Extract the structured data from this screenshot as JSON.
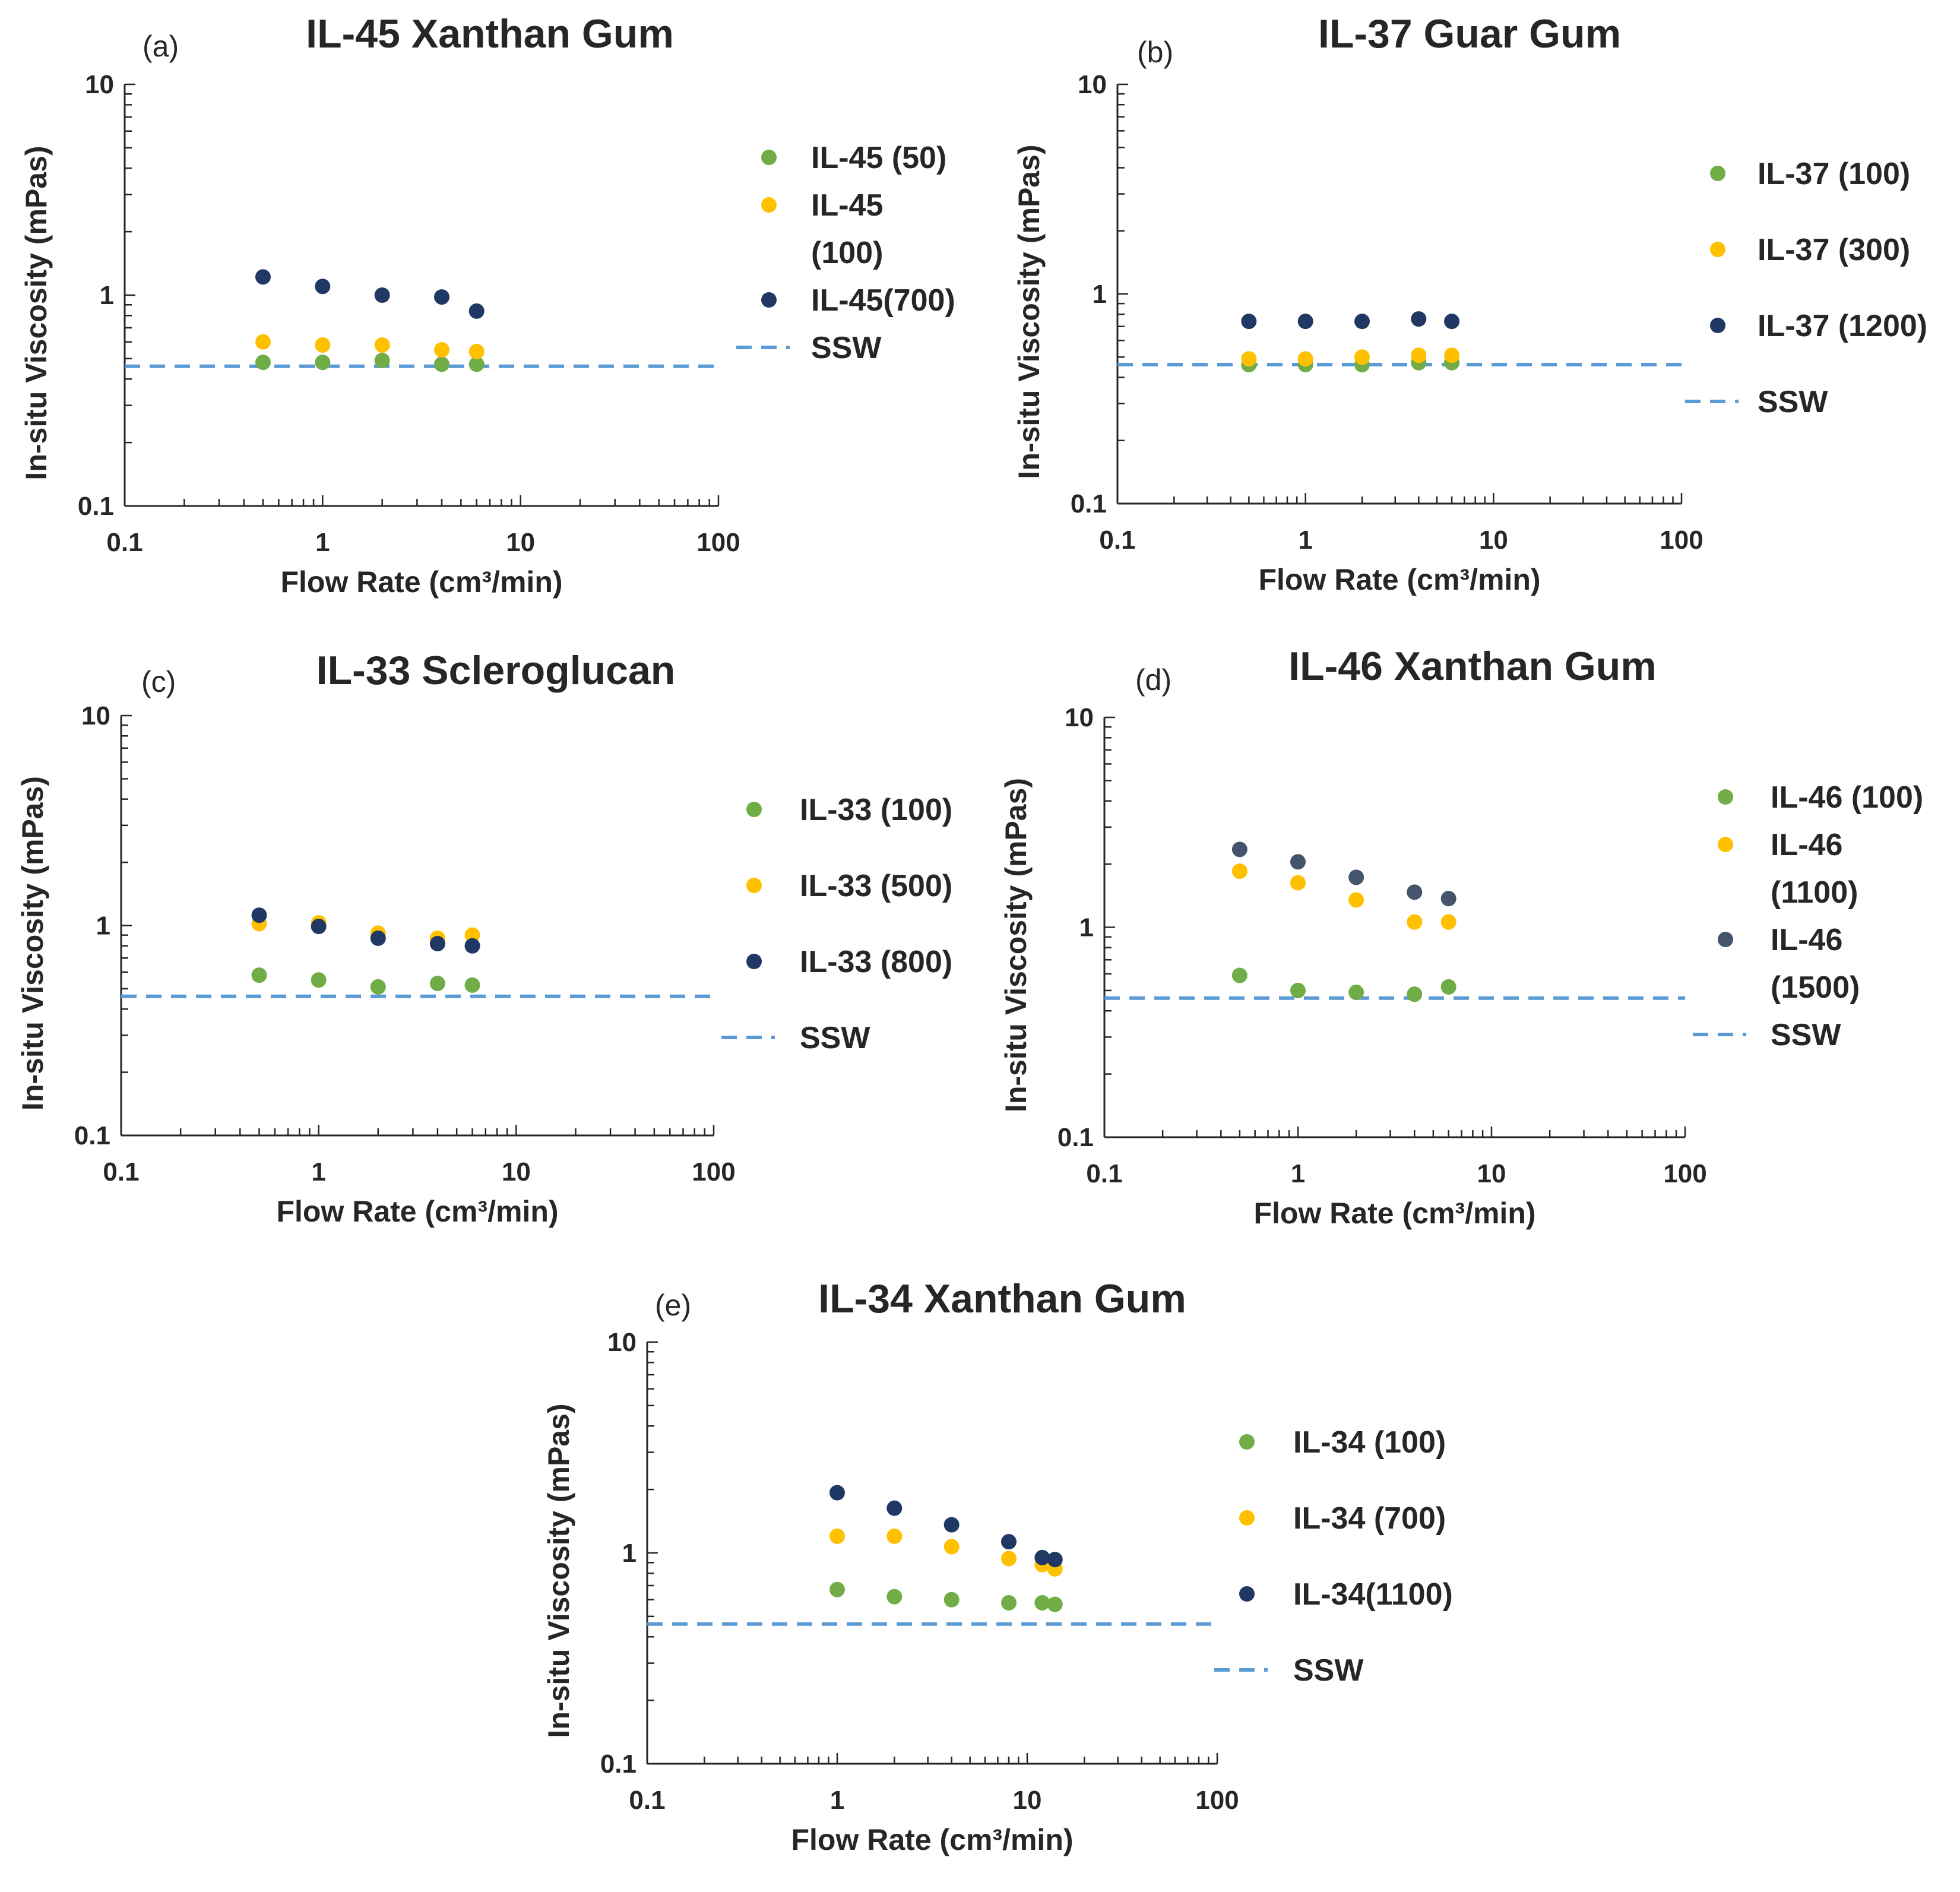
{
  "chart_data": [
    {
      "panel": "(a)",
      "type": "scatter",
      "title": "IL-45 Xanthan Gum",
      "xlabel": "Flow Rate (cm³/min)",
      "ylabel": "In-situ Viscosity (mPas)",
      "xscale": "log",
      "yscale": "log",
      "xlim": [
        0.1,
        100
      ],
      "ylim": [
        0.1,
        10
      ],
      "xticklabels": [
        "0.1",
        "1",
        "10",
        "100"
      ],
      "yticklabels": [
        "0.1",
        "1",
        "10"
      ],
      "series": [
        {
          "name": "IL-45 (50)",
          "legend_lines": [
            "IL-45 (50)"
          ],
          "color": "#70ad47",
          "x": [
            0.5,
            1,
            2,
            4,
            6
          ],
          "y": [
            0.48,
            0.48,
            0.49,
            0.47,
            0.47
          ]
        },
        {
          "name": "IL-45 (100)",
          "legend_lines": [
            "IL-45",
            "(100)"
          ],
          "color": "#ffc000",
          "x": [
            0.5,
            1,
            2,
            4,
            6
          ],
          "y": [
            0.6,
            0.58,
            0.58,
            0.55,
            0.54
          ]
        },
        {
          "name": "IL-45(700)",
          "legend_lines": [
            "IL-45(700)"
          ],
          "color": "#203864",
          "x": [
            0.5,
            1,
            2,
            4,
            6
          ],
          "y": [
            1.22,
            1.1,
            1.0,
            0.98,
            0.84
          ]
        }
      ],
      "reference_line": {
        "name": "SSW",
        "y": 0.46,
        "color": "#5b9bd5",
        "style": "dashed"
      }
    },
    {
      "panel": "(b)",
      "type": "scatter",
      "title": "IL-37 Guar Gum",
      "xlabel": "Flow Rate (cm³/min)",
      "ylabel": "In-situ Viscosity (mPas)",
      "xscale": "log",
      "yscale": "log",
      "xlim": [
        0.1,
        100
      ],
      "ylim": [
        0.1,
        10
      ],
      "xticklabels": [
        "0.1",
        "1",
        "10",
        "100"
      ],
      "yticklabels": [
        "0.1",
        "1",
        "10"
      ],
      "series": [
        {
          "name": "IL-37 (100)",
          "legend_lines": [
            "IL-37 (100)"
          ],
          "color": "#70ad47",
          "x": [
            0.5,
            1,
            2,
            4,
            6
          ],
          "y": [
            0.46,
            0.46,
            0.46,
            0.47,
            0.47
          ]
        },
        {
          "name": "IL-37 (300)",
          "legend_lines": [
            "IL-37 (300)"
          ],
          "color": "#ffc000",
          "x": [
            0.5,
            1,
            2,
            4,
            6
          ],
          "y": [
            0.49,
            0.49,
            0.5,
            0.51,
            0.51
          ]
        },
        {
          "name": "IL-37 (1200)",
          "legend_lines": [
            "IL-37 (1200)"
          ],
          "color": "#203864",
          "x": [
            0.5,
            1,
            2,
            4,
            6
          ],
          "y": [
            0.74,
            0.74,
            0.74,
            0.76,
            0.74
          ]
        }
      ],
      "reference_line": {
        "name": "SSW",
        "y": 0.46,
        "color": "#5b9bd5",
        "style": "dashed"
      }
    },
    {
      "panel": "(c)",
      "type": "scatter",
      "title": "IL-33 Scleroglucan",
      "xlabel": "Flow Rate (cm³/min)",
      "ylabel": "In-situ Viscosity (mPas)",
      "xscale": "log",
      "yscale": "log",
      "xlim": [
        0.1,
        100
      ],
      "ylim": [
        0.1,
        10
      ],
      "xticklabels": [
        "0.1",
        "1",
        "10",
        "100"
      ],
      "yticklabels": [
        "0.1",
        "1",
        "10"
      ],
      "series": [
        {
          "name": "IL-33 (100)",
          "legend_lines": [
            "IL-33 (100)"
          ],
          "color": "#70ad47",
          "x": [
            0.5,
            1,
            2,
            4,
            6
          ],
          "y": [
            0.58,
            0.55,
            0.51,
            0.53,
            0.52
          ]
        },
        {
          "name": "IL-33 (500)",
          "legend_lines": [
            "IL-33 (500)"
          ],
          "color": "#ffc000",
          "x": [
            0.5,
            1,
            2,
            4,
            6
          ],
          "y": [
            1.02,
            1.03,
            0.92,
            0.87,
            0.9
          ]
        },
        {
          "name": "IL-33 (800)",
          "legend_lines": [
            "IL-33 (800)"
          ],
          "color": "#203864",
          "x": [
            0.5,
            1,
            2,
            4,
            6
          ],
          "y": [
            1.12,
            0.99,
            0.87,
            0.82,
            0.8
          ]
        }
      ],
      "reference_line": {
        "name": "SSW",
        "y": 0.46,
        "color": "#5b9bd5",
        "style": "dashed"
      }
    },
    {
      "panel": "(d)",
      "type": "scatter",
      "title": "IL-46 Xanthan Gum",
      "xlabel": "Flow Rate (cm³/min)",
      "ylabel": "In-situ Viscosity (mPas)",
      "xscale": "log",
      "yscale": "log",
      "xlim": [
        0.1,
        100
      ],
      "ylim": [
        0.1,
        10
      ],
      "xticklabels": [
        "0.1",
        "1",
        "10",
        "100"
      ],
      "yticklabels": [
        "0.1",
        "1",
        "10"
      ],
      "series": [
        {
          "name": "IL-46 (100)",
          "legend_lines": [
            "IL-46 (100)"
          ],
          "color": "#70ad47",
          "x": [
            0.5,
            1,
            2,
            4,
            6
          ],
          "y": [
            0.59,
            0.5,
            0.49,
            0.48,
            0.52
          ]
        },
        {
          "name": "IL-46 (1100)",
          "legend_lines": [
            "IL-46",
            "(1100)"
          ],
          "color": "#ffc000",
          "x": [
            0.5,
            1,
            2,
            4,
            6
          ],
          "y": [
            1.85,
            1.63,
            1.35,
            1.06,
            1.06
          ]
        },
        {
          "name": "IL-46 (1500)",
          "legend_lines": [
            "IL-46",
            "(1500)"
          ],
          "color": "#44546a",
          "x": [
            0.5,
            1,
            2,
            4,
            6
          ],
          "y": [
            2.35,
            2.05,
            1.73,
            1.47,
            1.37
          ]
        }
      ],
      "reference_line": {
        "name": "SSW",
        "y": 0.46,
        "color": "#5b9bd5",
        "style": "dashed"
      }
    },
    {
      "panel": "(e)",
      "type": "scatter",
      "title": "IL-34 Xanthan Gum",
      "xlabel": "Flow Rate (cm³/min)",
      "ylabel": "In-situ Viscosity (mPas)",
      "xscale": "log",
      "yscale": "log",
      "xlim": [
        0.1,
        100
      ],
      "ylim": [
        0.1,
        10
      ],
      "xticklabels": [
        "0.1",
        "1",
        "10",
        "100"
      ],
      "yticklabels": [
        "0.1",
        "1",
        "10"
      ],
      "series": [
        {
          "name": "IL-34 (100)",
          "legend_lines": [
            "IL-34 (100)"
          ],
          "color": "#70ad47",
          "x": [
            1,
            2,
            4,
            8,
            12,
            14
          ],
          "y": [
            0.67,
            0.62,
            0.6,
            0.58,
            0.58,
            0.57
          ]
        },
        {
          "name": "IL-34 (700)",
          "legend_lines": [
            "IL-34 (700)"
          ],
          "color": "#ffc000",
          "x": [
            1,
            2,
            4,
            8,
            12,
            14
          ],
          "y": [
            1.2,
            1.2,
            1.07,
            0.94,
            0.88,
            0.84
          ]
        },
        {
          "name": "IL-34(1100)",
          "legend_lines": [
            "IL-34(1100)"
          ],
          "color": "#203864",
          "x": [
            1,
            2,
            4,
            8,
            12,
            14
          ],
          "y": [
            1.93,
            1.63,
            1.36,
            1.13,
            0.95,
            0.93
          ]
        }
      ],
      "reference_line": {
        "name": "SSW",
        "y": 0.46,
        "color": "#5b9bd5",
        "style": "dashed"
      }
    }
  ]
}
